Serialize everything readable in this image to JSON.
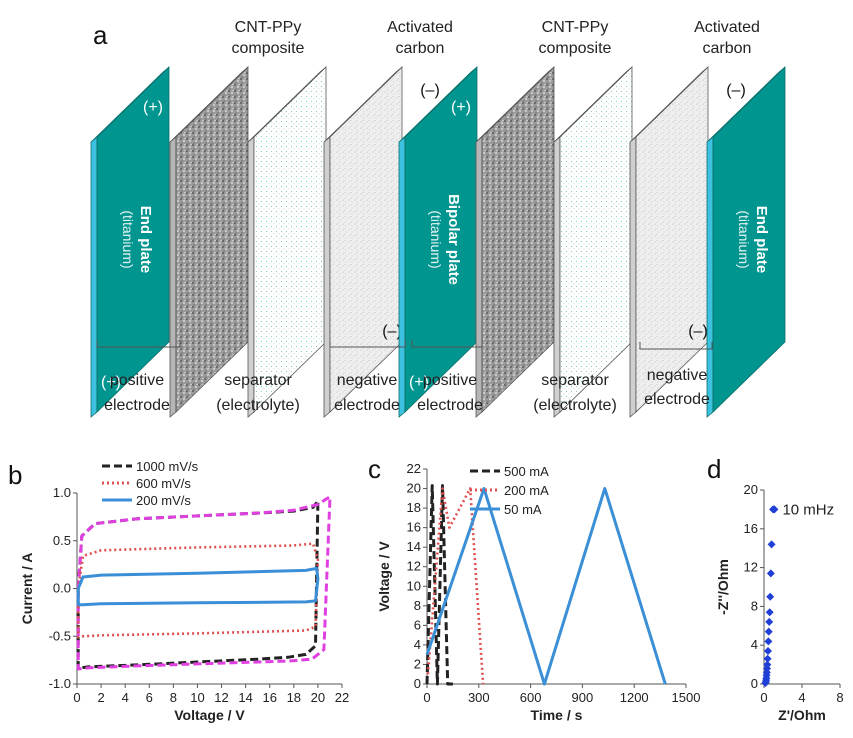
{
  "panel_a": {
    "letter": "a",
    "top_labels": [
      {
        "line1": "CNT-PPy",
        "line2": "composite"
      },
      {
        "line1": "Activated",
        "line2": "carbon"
      },
      {
        "line1": "CNT-PPy",
        "line2": "composite"
      },
      {
        "line1": "Activated",
        "line2": "carbon"
      }
    ],
    "plates": [
      {
        "title": "End plate",
        "sub": "(titanium)"
      },
      {
        "title": "Bipolar plate",
        "sub": "(titanium)"
      },
      {
        "title": "End plate",
        "sub": "(titanium)"
      }
    ],
    "signs": {
      "plus": "(+)",
      "minus": "(–)"
    },
    "bottom_labels": [
      {
        "line1": "positive",
        "line2": "electrode"
      },
      {
        "line1": "separator",
        "line2": "(electrolyte)"
      },
      {
        "line1": "negative",
        "line2": "electrode"
      },
      {
        "line1": "positive",
        "line2": "electrode"
      },
      {
        "line1": "separator",
        "line2": "(electrolyte)"
      },
      {
        "line1": "negative",
        "line2": "electrode"
      }
    ],
    "colors": {
      "plate": "#00958f",
      "plate_edge": "#3cc1df",
      "composite": "#8a8a8a"
    }
  },
  "chart_data": [
    {
      "panel": "b",
      "type": "line",
      "xlabel": "Voltage / V",
      "ylabel": "Current / A",
      "xlim": [
        0,
        22
      ],
      "ylim": [
        -1.0,
        1.0
      ],
      "xticks": [
        "0",
        "2",
        "4",
        "6",
        "8",
        "10",
        "12",
        "14",
        "16",
        "18",
        "20",
        "22"
      ],
      "yticks": [
        "-1.0",
        "-0.5",
        "0.0",
        "0.5",
        "1.0"
      ],
      "series": [
        {
          "name": "1000 mV/s",
          "color": "#222222",
          "style": "dashed",
          "x": [
            0.1,
            0.4,
            1.5,
            5,
            10,
            15,
            18,
            19.6,
            19.9,
            20.0,
            19.8,
            19,
            17.5,
            15,
            10,
            5,
            1,
            0.3,
            0.1,
            0.1
          ],
          "y": [
            0.0,
            0.55,
            0.68,
            0.73,
            0.76,
            0.79,
            0.81,
            0.85,
            0.9,
            0.92,
            -0.6,
            -0.69,
            -0.72,
            -0.74,
            -0.77,
            -0.8,
            -0.82,
            -0.83,
            -0.84,
            0.0
          ]
        },
        {
          "name": "",
          "color": "#e040e0",
          "style": "dashed",
          "x": [
            0.1,
            0.4,
            1.5,
            5,
            10,
            15,
            18,
            20,
            20.6,
            21.0,
            20.5,
            19.5,
            17.5,
            15,
            10,
            5,
            1,
            0.3,
            0.1,
            0.1
          ],
          "y": [
            0.0,
            0.55,
            0.68,
            0.73,
            0.76,
            0.79,
            0.82,
            0.88,
            0.93,
            0.96,
            -0.64,
            -0.74,
            -0.76,
            -0.77,
            -0.79,
            -0.81,
            -0.83,
            -0.84,
            -0.84,
            0.0
          ]
        },
        {
          "name": "600 mV/s",
          "color": "#e05050",
          "style": "dotted",
          "x": [
            0.1,
            0.5,
            2,
            10,
            18,
            19.6,
            20.0,
            19.8,
            19,
            10,
            2,
            0.5,
            0.1,
            0.1
          ],
          "y": [
            0.0,
            0.34,
            0.4,
            0.43,
            0.45,
            0.47,
            0.3,
            -0.4,
            -0.44,
            -0.47,
            -0.49,
            -0.5,
            -0.51,
            0.0
          ]
        },
        {
          "name": "200 mV/s",
          "color": "#3a8fd6",
          "style": "solid",
          "x": [
            0.1,
            0.5,
            2,
            10,
            19,
            19.9,
            20.0,
            19.8,
            19,
            10,
            2,
            0.5,
            0.1,
            0.1
          ],
          "y": [
            0.0,
            0.12,
            0.14,
            0.16,
            0.19,
            0.21,
            0.1,
            -0.13,
            -0.14,
            -0.15,
            -0.16,
            -0.17,
            -0.17,
            0.0
          ]
        }
      ]
    },
    {
      "panel": "c",
      "type": "line",
      "xlabel": "Time / s",
      "ylabel": "Voltage / V",
      "xlim": [
        0,
        1500
      ],
      "ylim": [
        0,
        22
      ],
      "xticks": [
        "0",
        "300",
        "600",
        "900",
        "1200",
        "1500"
      ],
      "yticks": [
        "0",
        "2",
        "4",
        "6",
        "8",
        "10",
        "12",
        "14",
        "16",
        "18",
        "20",
        "22"
      ],
      "series": [
        {
          "name": "500 mA",
          "color": "#222222",
          "style": "dashed",
          "x": [
            0,
            30,
            60,
            90,
            120,
            150
          ],
          "y": [
            0,
            20.3,
            0,
            20.3,
            0,
            0
          ]
        },
        {
          "name": "200 mA",
          "color": "#e05050",
          "style": "dotted",
          "x": [
            5,
            90,
            130,
            250,
            325
          ],
          "y": [
            1,
            20,
            16,
            20,
            0
          ]
        },
        {
          "name": "50 mA",
          "color": "#3a8fd6",
          "style": "solid",
          "x": [
            0,
            330,
            680,
            1030,
            1380
          ],
          "y": [
            3,
            20,
            0,
            20,
            0
          ]
        }
      ]
    },
    {
      "panel": "d",
      "type": "scatter",
      "xlabel": "Z'/Ohm",
      "ylabel": "-Z''/Ohm",
      "xlim": [
        0,
        8
      ],
      "ylim": [
        0,
        20
      ],
      "xticks": [
        "0",
        "4",
        "8"
      ],
      "yticks": [
        "0",
        "4",
        "8",
        "12",
        "16",
        "20"
      ],
      "annotation": "10 mHz",
      "series": [
        {
          "name": "",
          "color": "#1f3fd6",
          "x": [
            0.15,
            0.2,
            0.22,
            0.25,
            0.27,
            0.3,
            0.32,
            0.35,
            0.38,
            0.42,
            0.46,
            0.5,
            0.55,
            0.6,
            0.65,
            0.72,
            0.8,
            0.95,
            1.1
          ],
          "y": [
            0.1,
            0.2,
            0.4,
            0.6,
            0.9,
            1.2,
            1.6,
            2.0,
            2.6,
            3.4,
            4.4,
            5.4,
            6.4,
            7.4,
            9.0,
            11.4,
            14.4,
            18.0,
            18.0
          ]
        }
      ]
    }
  ]
}
